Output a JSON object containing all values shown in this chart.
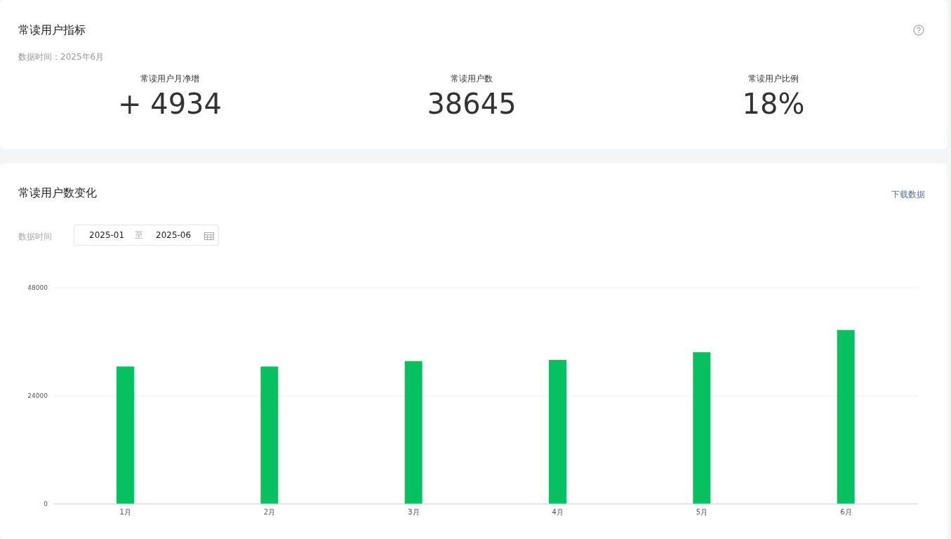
{
  "chart_data": [
    {
      "type": "other",
      "title": "常读用户指标",
      "subtitle": "数据时间：2025年6月",
      "annotations": [
        "常读用户月净增",
        "+ 4934",
        "常读用户数",
        "38645",
        "常读用户比例",
        "18%"
      ]
    },
    {
      "type": "bar",
      "title": "常读用户数变化",
      "categories": [
        "1月",
        "2月",
        "3月",
        "4月",
        "5月",
        "6月"
      ],
      "values": [
        30500,
        30500,
        31700,
        32000,
        33700,
        38600
      ],
      "color": "#07c160",
      "ylim": [
        0,
        48000
      ],
      "yticks": [
        0,
        24000,
        48000
      ],
      "grid": "y",
      "annotations": [
        "数据时间",
        "2025-01",
        "至",
        "2025-06",
        "下载数据"
      ]
    }
  ]
}
